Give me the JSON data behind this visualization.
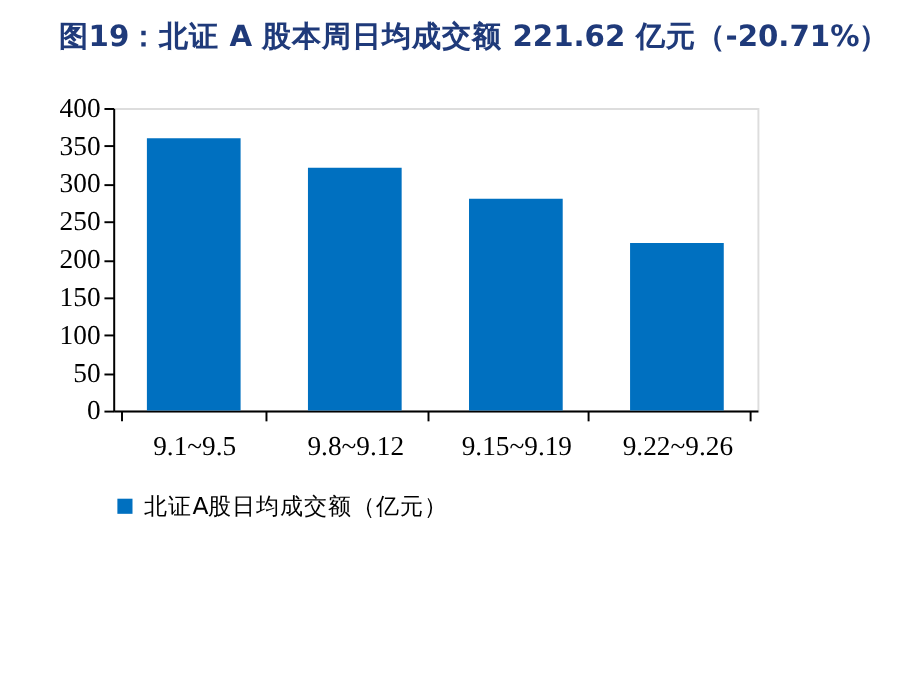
{
  "chart_data": {
    "type": "bar",
    "title": "图19：北证 A 股本周日均成交额 221.62 亿元（-20.71%）",
    "categories": [
      "9.1~9.5",
      "9.8~9.12",
      "9.15~9.19",
      "9.22~9.26"
    ],
    "series": [
      {
        "name": "北证A股日均成交额（亿元）",
        "color": "#0070c0",
        "values": [
          360,
          321,
          280,
          221.62
        ]
      }
    ],
    "ylim": [
      0,
      400
    ],
    "yticks": [
      0,
      50,
      100,
      150,
      200,
      250,
      300,
      350,
      400
    ],
    "grid": false,
    "legend": "bottom"
  }
}
